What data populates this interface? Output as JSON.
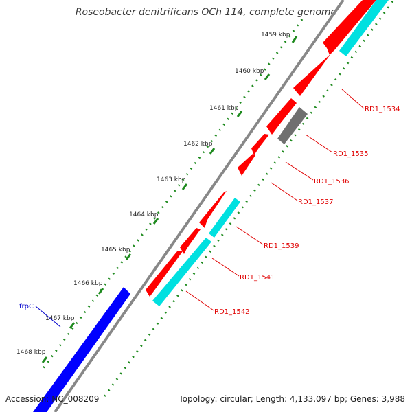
{
  "title": "Roseobacter denitrificans OCh 114, complete genome",
  "colors": {
    "forward_gene": "#ff0000",
    "reverse_gene": "#00e0e0",
    "other_gene": "#707070",
    "highlight_gene": "#0000ff",
    "backbone": "#888888",
    "gc_dots": "#1e8a1e",
    "label_line": "#e00000",
    "highlight_label": "#0000cc"
  },
  "scale_labels": [
    "1459 kbp",
    "1460 kbp",
    "1461 kbp",
    "1462 kbp",
    "1463 kbp",
    "1464 kbp",
    "1465 kbp",
    "1466 kbp",
    "1467 kbp",
    "1468 kbp"
  ],
  "gene_labels": [
    "RD1_1534",
    "RD1_1535",
    "RD1_1536",
    "RD1_1537",
    "RD1_1539",
    "RD1_1541",
    "RD1_1542"
  ],
  "highlight_label": "frpC",
  "footer": {
    "accession": "Accession: NC_008209",
    "topology": "Topology: circular; Length: 4,133,097 bp; Genes: 3,988"
  }
}
